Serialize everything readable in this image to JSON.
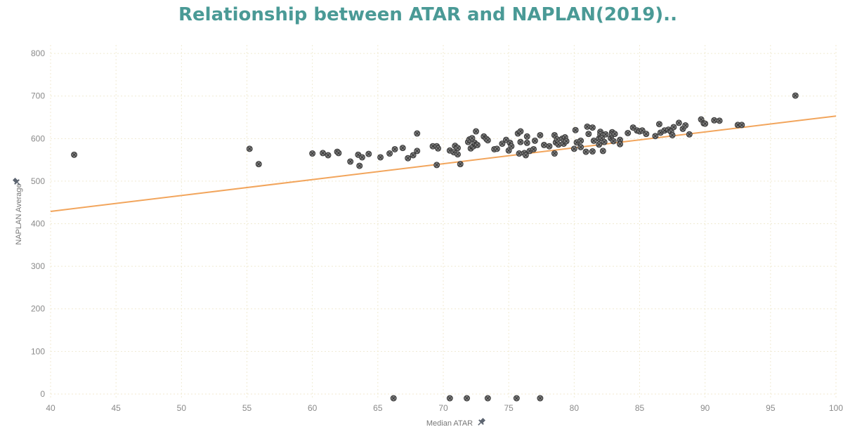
{
  "chart_data": {
    "type": "scatter",
    "title": "Relationship between ATAR and NAPLAN(2019)..",
    "xlabel": "Median ATAR",
    "ylabel": "NAPLAN Average",
    "xlim": [
      40,
      100
    ],
    "ylim": [
      -10,
      820
    ],
    "x_ticks": [
      40,
      45,
      50,
      55,
      60,
      65,
      70,
      75,
      80,
      85,
      90,
      95,
      100
    ],
    "y_ticks": [
      0,
      100,
      200,
      300,
      400,
      500,
      600,
      700,
      800
    ],
    "grid": true,
    "points": [
      [
        41.8,
        562
      ],
      [
        55.2,
        576
      ],
      [
        55.9,
        540
      ],
      [
        60.0,
        565
      ],
      [
        60.8,
        566
      ],
      [
        61.2,
        561
      ],
      [
        61.9,
        569
      ],
      [
        62.0,
        566
      ],
      [
        62.9,
        546
      ],
      [
        63.5,
        562
      ],
      [
        63.6,
        536
      ],
      [
        63.8,
        556
      ],
      [
        64.3,
        564
      ],
      [
        65.2,
        556
      ],
      [
        65.9,
        565
      ],
      [
        66.3,
        575
      ],
      [
        66.9,
        578
      ],
      [
        67.3,
        554
      ],
      [
        67.7,
        561
      ],
      [
        68.0,
        571
      ],
      [
        68.0,
        612
      ],
      [
        69.2,
        582
      ],
      [
        69.5,
        582
      ],
      [
        69.5,
        538
      ],
      [
        69.6,
        577
      ],
      [
        70.5,
        572
      ],
      [
        70.8,
        568
      ],
      [
        70.9,
        583
      ],
      [
        71.1,
        578
      ],
      [
        71.1,
        563
      ],
      [
        71.3,
        540
      ],
      [
        71.9,
        592
      ],
      [
        72.0,
        598
      ],
      [
        72.1,
        577
      ],
      [
        72.2,
        601
      ],
      [
        72.3,
        582
      ],
      [
        72.4,
        590
      ],
      [
        72.5,
        617
      ],
      [
        72.6,
        585
      ],
      [
        73.1,
        605
      ],
      [
        73.3,
        599
      ],
      [
        73.4,
        596
      ],
      [
        73.9,
        575
      ],
      [
        74.1,
        576
      ],
      [
        74.5,
        588
      ],
      [
        74.8,
        597
      ],
      [
        75.0,
        572
      ],
      [
        75.1,
        590
      ],
      [
        75.2,
        582
      ],
      [
        75.7,
        612
      ],
      [
        75.8,
        565
      ],
      [
        75.9,
        617
      ],
      [
        75.9,
        592
      ],
      [
        76.2,
        566
      ],
      [
        76.3,
        561
      ],
      [
        76.4,
        590
      ],
      [
        76.4,
        605
      ],
      [
        76.6,
        571
      ],
      [
        76.9,
        575
      ],
      [
        77.0,
        595
      ],
      [
        77.4,
        608
      ],
      [
        77.7,
        585
      ],
      [
        78.1,
        582
      ],
      [
        78.5,
        565
      ],
      [
        78.5,
        608
      ],
      [
        78.6,
        591
      ],
      [
        78.7,
        598
      ],
      [
        78.8,
        586
      ],
      [
        79.1,
        600
      ],
      [
        79.2,
        588
      ],
      [
        79.3,
        603
      ],
      [
        79.4,
        594
      ],
      [
        80.0,
        576
      ],
      [
        80.1,
        620
      ],
      [
        80.2,
        591
      ],
      [
        80.5,
        580
      ],
      [
        80.5,
        595
      ],
      [
        80.9,
        569
      ],
      [
        81.0,
        628
      ],
      [
        81.1,
        611
      ],
      [
        81.4,
        626
      ],
      [
        81.4,
        570
      ],
      [
        81.5,
        595
      ],
      [
        81.9,
        586
      ],
      [
        81.9,
        600
      ],
      [
        82.0,
        616
      ],
      [
        82.0,
        610
      ],
      [
        82.1,
        601
      ],
      [
        82.2,
        571
      ],
      [
        82.3,
        592
      ],
      [
        82.4,
        610
      ],
      [
        82.8,
        601
      ],
      [
        82.9,
        615
      ],
      [
        82.9,
        610
      ],
      [
        83.0,
        594
      ],
      [
        83.1,
        611
      ],
      [
        83.5,
        597
      ],
      [
        83.5,
        587
      ],
      [
        84.1,
        613
      ],
      [
        84.5,
        626
      ],
      [
        84.8,
        619
      ],
      [
        85.0,
        617
      ],
      [
        85.2,
        619
      ],
      [
        85.5,
        611
      ],
      [
        86.2,
        606
      ],
      [
        86.5,
        634
      ],
      [
        86.6,
        614
      ],
      [
        86.9,
        619
      ],
      [
        87.2,
        621
      ],
      [
        87.4,
        616
      ],
      [
        87.5,
        608
      ],
      [
        87.6,
        627
      ],
      [
        88.0,
        637
      ],
      [
        88.3,
        623
      ],
      [
        88.5,
        631
      ],
      [
        88.8,
        610
      ],
      [
        89.7,
        645
      ],
      [
        89.9,
        636
      ],
      [
        90.0,
        635
      ],
      [
        90.7,
        643
      ],
      [
        91.1,
        642
      ],
      [
        92.5,
        632
      ],
      [
        92.8,
        632
      ],
      [
        96.9,
        701
      ],
      [
        66.2,
        -10
      ],
      [
        70.5,
        -10
      ],
      [
        71.8,
        -10
      ],
      [
        73.4,
        -10
      ],
      [
        75.6,
        -10
      ],
      [
        77.4,
        -10
      ]
    ],
    "trend_line": {
      "x": [
        40,
        100
      ],
      "y": [
        429,
        653
      ],
      "color": "#f2a55c"
    }
  }
}
